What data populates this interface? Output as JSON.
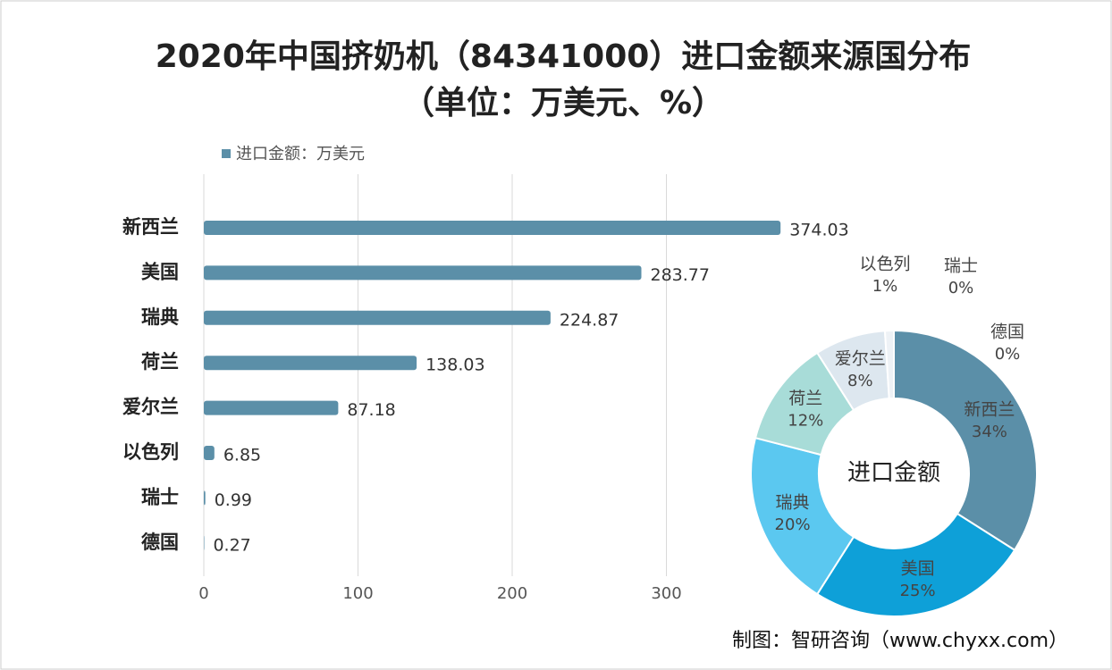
{
  "chart_data": [
    {
      "type": "hbar",
      "title": "2020年中国挤奶机（84341000）进口金额来源国分布（单位：万美元、%）",
      "categories": [
        "新西兰",
        "美国",
        "瑞典",
        "荷兰",
        "爱尔兰",
        "以色列",
        "瑞士",
        "德国"
      ],
      "series": [
        {
          "name": "进口金额：万美元",
          "color": "#5b8fa8",
          "values": [
            374.03,
            283.77,
            224.87,
            138.03,
            87.18,
            6.85,
            0.99,
            0.27
          ]
        }
      ],
      "xlim": [
        0,
        400
      ],
      "xticks": [
        0,
        100,
        200,
        300
      ],
      "grid": true,
      "legend": "top-left",
      "source": "制图：智研咨询（www.chyxx.com）"
    },
    {
      "type": "donut",
      "center_label": "进口金额",
      "categories": [
        "新西兰",
        "美国",
        "瑞典",
        "荷兰",
        "爱尔兰",
        "以色列",
        "瑞士",
        "德国"
      ],
      "values": [
        34,
        25,
        20,
        12,
        8,
        1,
        0,
        0
      ],
      "value_labels": [
        "34%",
        "25%",
        "20%",
        "12%",
        "8%",
        "1%",
        "0%",
        "0%"
      ],
      "colors": [
        "#5b8fa8",
        "#0ea0d8",
        "#5bc8f0",
        "#a8dcd8",
        "#dde7ef",
        "#eef2f6",
        "#f4f6f8",
        "#f4f6f8"
      ]
    }
  ]
}
